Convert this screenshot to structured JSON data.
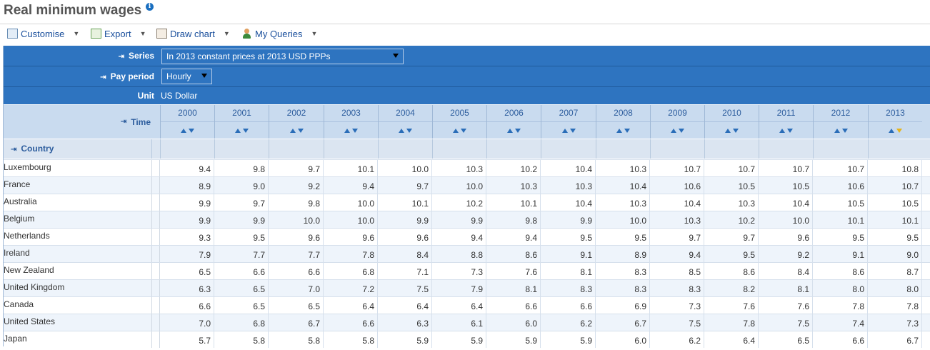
{
  "page": {
    "title": "Real minimum wages"
  },
  "toolbar": [
    {
      "key": "customise",
      "label": "Customise",
      "icon": "customise-icon"
    },
    {
      "key": "export",
      "label": "Export",
      "icon": "export-icon"
    },
    {
      "key": "draw_chart",
      "label": "Draw chart",
      "icon": "chart-icon"
    },
    {
      "key": "my_queries",
      "label": "My Queries",
      "icon": "user-icon"
    }
  ],
  "filters": {
    "series_label": "Series",
    "series_value": "In 2013 constant prices at 2013 USD PPPs",
    "pay_period_label": "Pay period",
    "pay_period_value": "Hourly",
    "unit_label": "Unit",
    "unit_value": "US Dollar",
    "time_label": "Time",
    "country_label": "Country"
  },
  "table": {
    "years": [
      "2000",
      "2001",
      "2002",
      "2003",
      "2004",
      "2005",
      "2006",
      "2007",
      "2008",
      "2009",
      "2010",
      "2011",
      "2012",
      "2013"
    ],
    "rows": [
      {
        "country": "Luxembourg",
        "values": [
          "9.4",
          "9.8",
          "9.7",
          "10.1",
          "10.0",
          "10.3",
          "10.2",
          "10.4",
          "10.3",
          "10.7",
          "10.7",
          "10.7",
          "10.7",
          "10.8"
        ]
      },
      {
        "country": "France",
        "values": [
          "8.9",
          "9.0",
          "9.2",
          "9.4",
          "9.7",
          "10.0",
          "10.3",
          "10.3",
          "10.4",
          "10.6",
          "10.5",
          "10.5",
          "10.6",
          "10.7"
        ]
      },
      {
        "country": "Australia",
        "values": [
          "9.9",
          "9.7",
          "9.8",
          "10.0",
          "10.1",
          "10.2",
          "10.1",
          "10.4",
          "10.3",
          "10.4",
          "10.3",
          "10.4",
          "10.5",
          "10.5"
        ]
      },
      {
        "country": "Belgium",
        "values": [
          "9.9",
          "9.9",
          "10.0",
          "10.0",
          "9.9",
          "9.9",
          "9.8",
          "9.9",
          "10.0",
          "10.3",
          "10.2",
          "10.0",
          "10.1",
          "10.1"
        ]
      },
      {
        "country": "Netherlands",
        "values": [
          "9.3",
          "9.5",
          "9.6",
          "9.6",
          "9.6",
          "9.4",
          "9.4",
          "9.5",
          "9.5",
          "9.7",
          "9.7",
          "9.6",
          "9.5",
          "9.5"
        ]
      },
      {
        "country": "Ireland",
        "values": [
          "7.9",
          "7.7",
          "7.7",
          "7.8",
          "8.4",
          "8.8",
          "8.6",
          "9.1",
          "8.9",
          "9.4",
          "9.5",
          "9.2",
          "9.1",
          "9.0"
        ]
      },
      {
        "country": "New Zealand",
        "values": [
          "6.5",
          "6.6",
          "6.6",
          "6.8",
          "7.1",
          "7.3",
          "7.6",
          "8.1",
          "8.3",
          "8.5",
          "8.6",
          "8.4",
          "8.6",
          "8.7"
        ]
      },
      {
        "country": "United Kingdom",
        "values": [
          "6.3",
          "6.5",
          "7.0",
          "7.2",
          "7.5",
          "7.9",
          "8.1",
          "8.3",
          "8.3",
          "8.3",
          "8.2",
          "8.1",
          "8.0",
          "8.0"
        ]
      },
      {
        "country": "Canada",
        "values": [
          "6.6",
          "6.5",
          "6.5",
          "6.4",
          "6.4",
          "6.4",
          "6.6",
          "6.6",
          "6.9",
          "7.3",
          "7.6",
          "7.6",
          "7.8",
          "7.8"
        ]
      },
      {
        "country": "United States",
        "values": [
          "7.0",
          "6.8",
          "6.7",
          "6.6",
          "6.3",
          "6.1",
          "6.0",
          "6.2",
          "6.7",
          "7.5",
          "7.8",
          "7.5",
          "7.4",
          "7.3"
        ]
      },
      {
        "country": "Japan",
        "values": [
          "5.7",
          "5.8",
          "5.8",
          "5.8",
          "5.9",
          "5.9",
          "5.9",
          "5.9",
          "6.0",
          "6.2",
          "6.4",
          "6.5",
          "6.6",
          "6.7"
        ]
      }
    ]
  }
}
